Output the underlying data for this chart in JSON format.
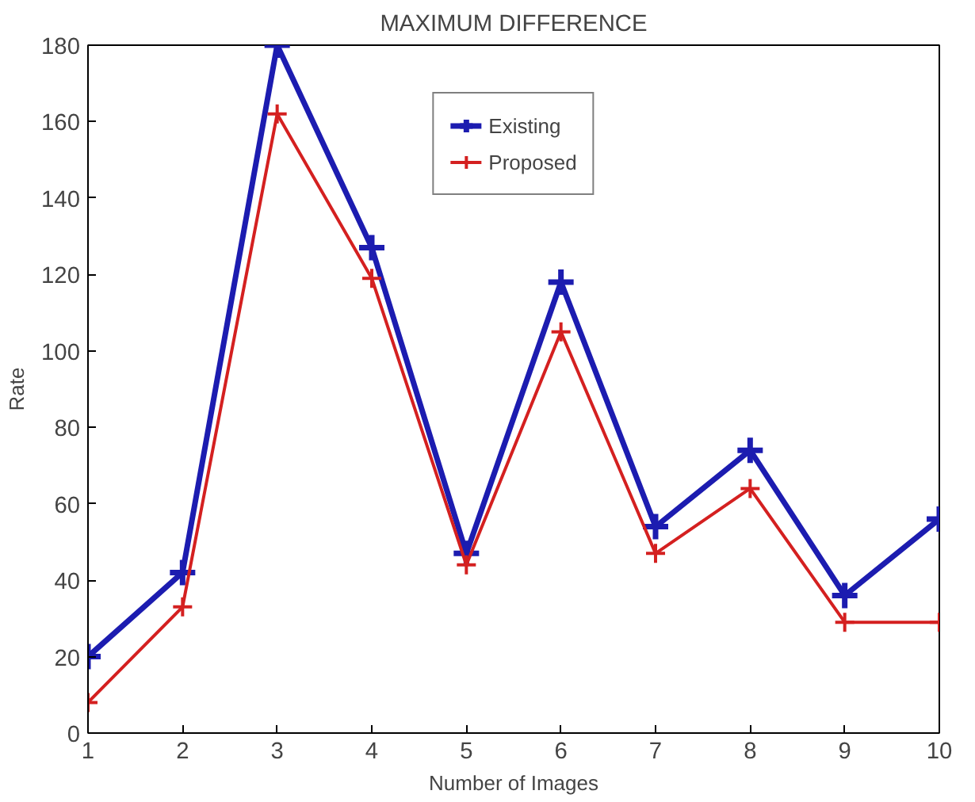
{
  "chart_data": {
    "type": "line",
    "title": "MAXIMUM DIFFERENCE",
    "xlabel": "Number of Images",
    "ylabel": "Rate",
    "x": [
      1,
      2,
      3,
      4,
      5,
      6,
      7,
      8,
      9,
      10
    ],
    "series": [
      {
        "name": "Existing",
        "color": "#1c1cb0",
        "values": [
          20,
          42,
          180,
          127,
          47,
          118,
          54,
          74,
          36,
          56
        ]
      },
      {
        "name": "Proposed",
        "color": "#d42020",
        "values": [
          8,
          33,
          162,
          119,
          44,
          105,
          47,
          64,
          29,
          29
        ]
      }
    ],
    "xlim": [
      1,
      10
    ],
    "ylim": [
      0,
      180
    ],
    "xticks": [
      1,
      2,
      3,
      4,
      5,
      6,
      7,
      8,
      9,
      10
    ],
    "yticks": [
      0,
      20,
      40,
      60,
      80,
      100,
      120,
      140,
      160,
      180
    ],
    "grid": false,
    "legend": "top",
    "marker": "cross",
    "line_style": "solid"
  }
}
